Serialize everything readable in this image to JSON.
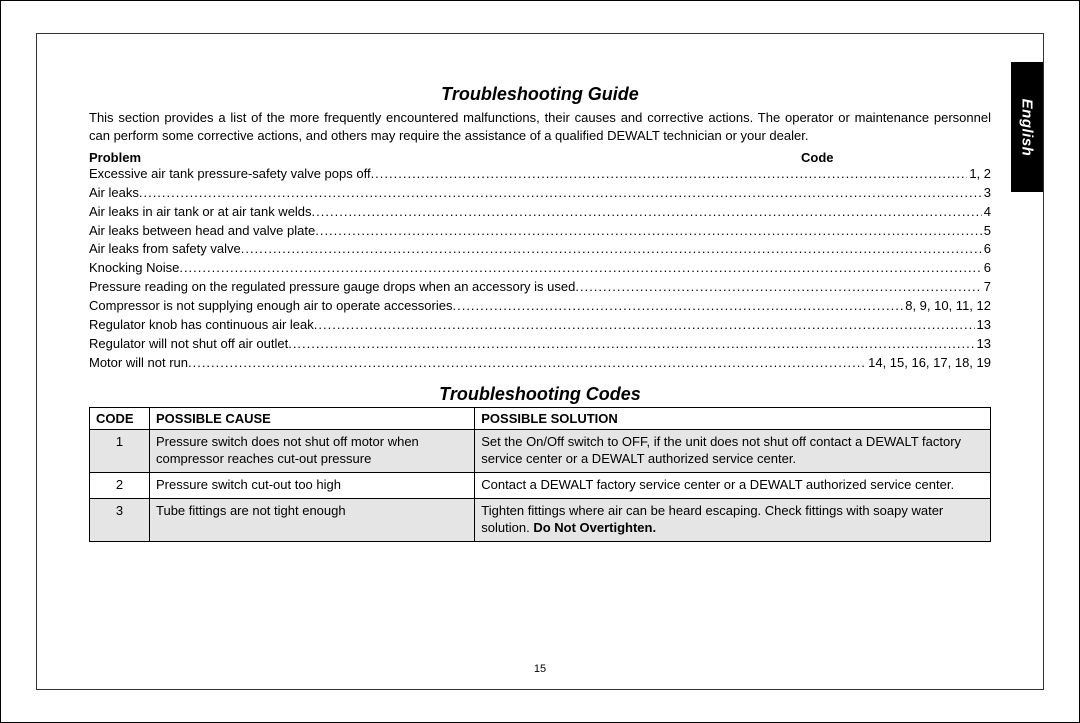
{
  "language_tab": "English",
  "page_number": "15",
  "guide": {
    "title": "Troubleshooting Guide",
    "intro_pre": "This section provides a list of the more frequently encountered malfunctions, their causes and corrective actions. The operator or maintenance personnel can perform some corrective actions, and others may require the assistance of a qualified D",
    "intro_sc": "E",
    "intro_post": "WALT technician or your dealer.",
    "header_problem": "Problem",
    "header_code": "Code",
    "rows": [
      {
        "problem": "Excessive air tank pressure-safety valve pops off ",
        "code": "1, 2"
      },
      {
        "problem": "Air leaks ",
        "code": "3"
      },
      {
        "problem": "Air leaks in air tank or at air tank welds ",
        "code": "4"
      },
      {
        "problem": "Air leaks between head and valve plate",
        "code": "5"
      },
      {
        "problem": "Air leaks from safety valve",
        "code": "6"
      },
      {
        "problem": "Knocking Noise",
        "code": "6"
      },
      {
        "problem": "Pressure reading on the regulated pressure gauge drops when an accessory is used",
        "code": "7"
      },
      {
        "problem": "Compressor is not supplying enough air to operate accessories",
        "code": "8, 9, 10, 11, 12"
      },
      {
        "problem": "Regulator knob has continuous air leak ",
        "code": "13"
      },
      {
        "problem": "Regulator will not shut off air outlet",
        "code": "13"
      },
      {
        "problem": "Motor will not run ",
        "code": "14, 15, 16, 17, 18, 19"
      }
    ]
  },
  "codes": {
    "title": "Troubleshooting Codes",
    "col_code": "CODE",
    "col_cause": "POSSIBLE CAUSE",
    "col_solution": "POSSIBLE SOLUTION",
    "rows": [
      {
        "code": "1",
        "cause": "Pressure switch does not shut off motor when compressor reaches cut-out pressure",
        "solution_pre": "Set the On/Off switch to OFF, if the unit does not shut off contact a D",
        "solution_sc1": "E",
        "solution_mid": "WALT factory service center or a D",
        "solution_sc2": "E",
        "solution_post": "WALT authorized service center.",
        "shaded": true
      },
      {
        "code": "2",
        "cause": "Pressure switch cut-out too high",
        "solution_pre": "Contact a D",
        "solution_sc1": "E",
        "solution_mid": "WALT factory service center or a D",
        "solution_sc2": "E",
        "solution_post": "WALT authorized service center.",
        "shaded": false
      },
      {
        "code": "3",
        "cause": "Tube fittings are not tight enough",
        "solution_plain": "Tighten fittings where air can be heard escaping. Check fittings with soapy water solution. ",
        "solution_bold": "Do Not Overtighten.",
        "shaded": true
      }
    ]
  }
}
